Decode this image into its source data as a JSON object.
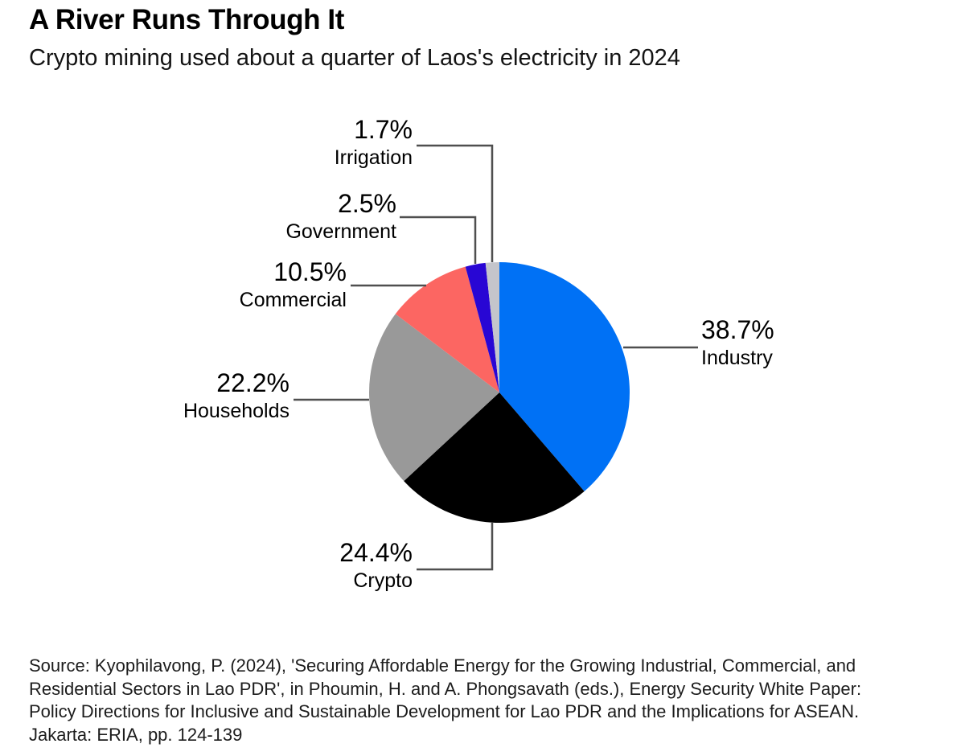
{
  "header": {
    "title": "A River Runs Through It",
    "subtitle": "Crypto mining used about a quarter of Laos's electricity in 2024"
  },
  "chart_data": {
    "type": "pie",
    "title": "A River Runs Through It",
    "subtitle": "Crypto mining used about a quarter of Laos's electricity in 2024",
    "start_angle_deg": 0,
    "direction": "clockwise",
    "legend_position": "none",
    "label_style": "outside-with-leader-lines",
    "slices": [
      {
        "label": "Industry",
        "value": 38.7,
        "display": "38.7%",
        "color": "#0071f5"
      },
      {
        "label": "Crypto",
        "value": 24.4,
        "display": "24.4%",
        "color": "#000000"
      },
      {
        "label": "Households",
        "value": 22.2,
        "display": "22.2%",
        "color": "#999999"
      },
      {
        "label": "Commercial",
        "value": 10.5,
        "display": "10.5%",
        "color": "#fc6662"
      },
      {
        "label": "Government",
        "value": 2.5,
        "display": "2.5%",
        "color": "#2806d4"
      },
      {
        "label": "Irrigation",
        "value": 1.7,
        "display": "1.7%",
        "color": "#c4c5cb"
      }
    ]
  },
  "source": {
    "text": "Source: Kyophilavong, P. (2024), 'Securing Affordable Energy for the Growing Industrial, Commercial, and\nResidential Sectors in Lao PDR', in Phoumin, H. and A. Phongsavath (eds.), Energy Security White Paper:\nPolicy Directions for Inclusive and Sustainable Development for Lao PDR and the Implications for ASEAN.\nJakarta: ERIA, pp. 124-139"
  }
}
